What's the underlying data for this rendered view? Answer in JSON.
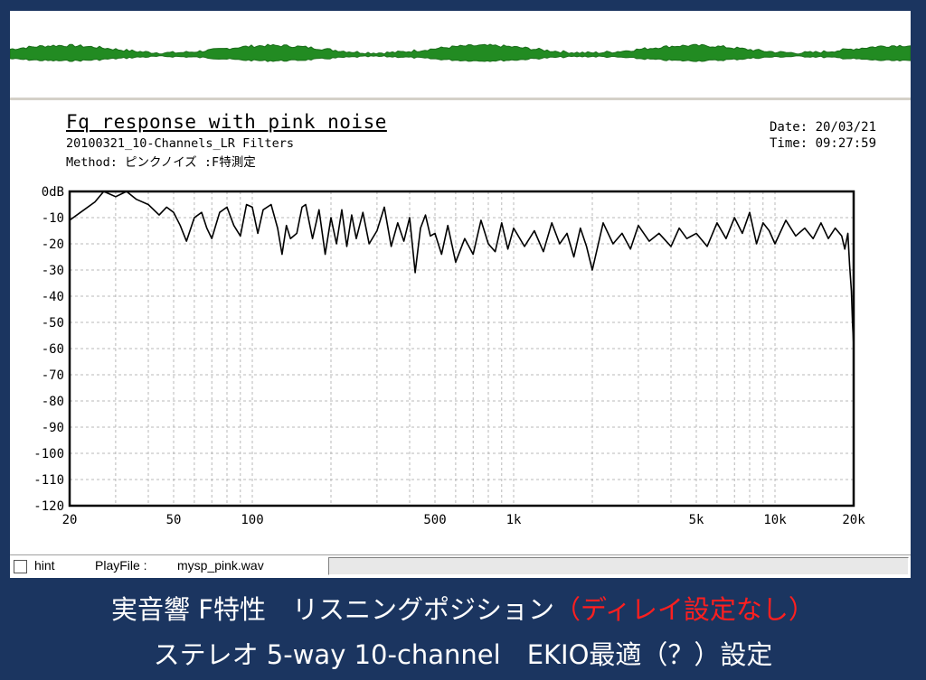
{
  "caption": {
    "line1_main": "実音響 F特性　リスニングポジション",
    "line1_highlight": "（ディレイ設定なし）",
    "line2": "ステレオ 5-way 10-channel　EKIO最適（？）設定",
    "highlight_color": "#ff1f1f"
  },
  "header": {
    "title": "Fq response with pink noise",
    "subtitle": "20100321_10-Channels_LR Filters",
    "method": "Method:  ピンクノイズ  :F特測定",
    "date": "Date: 20/03/21",
    "time": "Time: 09:27:59"
  },
  "status": {
    "hint_label": "hint",
    "playfile_label": "PlayFile  :",
    "playfile_value": "mysp_pink.wav"
  },
  "colors": {
    "background": "#1b3560",
    "waveform": "#228b22",
    "curve": "#000000"
  },
  "chart_data": {
    "type": "line",
    "title": "Fq response with pink noise",
    "x_scale": "log",
    "xlim": [
      20,
      20000
    ],
    "ylim": [
      -120,
      0
    ],
    "x_ticks": [
      {
        "value": 20,
        "label": "20"
      },
      {
        "value": 50,
        "label": "50"
      },
      {
        "value": 100,
        "label": "100"
      },
      {
        "value": 500,
        "label": "500"
      },
      {
        "value": 1000,
        "label": "1k"
      },
      {
        "value": 5000,
        "label": "5k"
      },
      {
        "value": 10000,
        "label": "10k"
      },
      {
        "value": 20000,
        "label": "20k"
      }
    ],
    "y_ticks": [
      {
        "value": 0,
        "label": "0dB"
      },
      {
        "value": -10,
        "label": "-10"
      },
      {
        "value": -20,
        "label": "-20"
      },
      {
        "value": -30,
        "label": "-30"
      },
      {
        "value": -40,
        "label": "-40"
      },
      {
        "value": -50,
        "label": "-50"
      },
      {
        "value": -60,
        "label": "-60"
      },
      {
        "value": -70,
        "label": "-70"
      },
      {
        "value": -80,
        "label": "-80"
      },
      {
        "value": -90,
        "label": "-90"
      },
      {
        "value": -100,
        "label": "-100"
      },
      {
        "value": -110,
        "label": "-110"
      },
      {
        "value": -120,
        "label": "-120"
      }
    ],
    "grid": true,
    "series": [
      {
        "x": [
          20,
          22,
          25,
          27,
          30,
          33,
          36,
          40,
          44,
          47,
          50,
          53,
          56,
          60,
          64,
          67,
          70,
          75,
          80,
          85,
          90,
          95,
          100,
          105,
          110,
          118,
          125,
          130,
          135,
          140,
          148,
          155,
          160,
          170,
          180,
          190,
          200,
          210,
          220,
          230,
          240,
          250,
          265,
          280,
          300,
          320,
          340,
          360,
          380,
          400,
          420,
          440,
          460,
          480,
          500,
          530,
          560,
          600,
          650,
          700,
          750,
          800,
          850,
          900,
          950,
          1000,
          1100,
          1200,
          1300,
          1400,
          1500,
          1600,
          1700,
          1800,
          1900,
          2000,
          2200,
          2400,
          2600,
          2800,
          3000,
          3300,
          3600,
          4000,
          4300,
          4600,
          5000,
          5500,
          6000,
          6500,
          7000,
          7500,
          8000,
          8500,
          9000,
          9500,
          10000,
          11000,
          12000,
          13000,
          14000,
          15000,
          16000,
          17000,
          18000,
          18500,
          19000,
          19300,
          19600,
          19800,
          20000
        ],
        "y": [
          -11,
          -8,
          -4,
          0,
          -2,
          0,
          -3,
          -5,
          -9,
          -6,
          -8,
          -13,
          -19,
          -10,
          -8,
          -14,
          -18,
          -8,
          -6,
          -13,
          -17,
          -5,
          -6,
          -16,
          -7,
          -5,
          -14,
          -24,
          -13,
          -18,
          -16,
          -6,
          -5,
          -18,
          -7,
          -24,
          -10,
          -20,
          -7,
          -21,
          -9,
          -18,
          -8,
          -20,
          -15,
          -6,
          -21,
          -12,
          -19,
          -10,
          -31,
          -14,
          -9,
          -17,
          -16,
          -24,
          -13,
          -27,
          -18,
          -24,
          -11,
          -20,
          -23,
          -12,
          -22,
          -14,
          -21,
          -15,
          -23,
          -12,
          -20,
          -16,
          -25,
          -14,
          -21,
          -30,
          -12,
          -20,
          -16,
          -22,
          -13,
          -19,
          -16,
          -21,
          -14,
          -18,
          -16,
          -21,
          -12,
          -18,
          -10,
          -16,
          -8,
          -20,
          -12,
          -15,
          -20,
          -11,
          -17,
          -14,
          -18,
          -12,
          -18,
          -14,
          -17,
          -22,
          -16,
          -28,
          -38,
          -50,
          -59
        ]
      }
    ]
  }
}
